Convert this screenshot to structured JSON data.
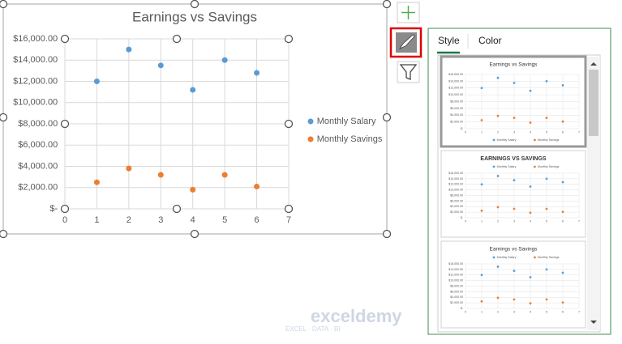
{
  "chart_data": {
    "type": "scatter",
    "title": "Earnings vs Savings",
    "x": [
      1,
      2,
      3,
      4,
      5,
      6
    ],
    "series": [
      {
        "name": "Monthly Salary",
        "color": "#5b9bd5",
        "values": [
          12000,
          15000,
          13500,
          11200,
          14000,
          12800
        ]
      },
      {
        "name": "Monthly Savings",
        "color": "#ed7d31",
        "values": [
          2500,
          3800,
          3200,
          1800,
          3200,
          2100
        ]
      }
    ],
    "xlim": [
      0,
      7
    ],
    "xticks": [
      0,
      1,
      2,
      3,
      4,
      5,
      6,
      7
    ],
    "ylim": [
      0,
      16000
    ],
    "yticks": [
      {
        "value": 0,
        "label": "$-"
      },
      {
        "value": 2000,
        "label": "$2,000.00"
      },
      {
        "value": 4000,
        "label": "$4,000.00"
      },
      {
        "value": 6000,
        "label": "$6,000.00"
      },
      {
        "value": 8000,
        "label": "$8,000.00"
      },
      {
        "value": 10000,
        "label": "$10,000.00"
      },
      {
        "value": 12000,
        "label": "$12,000.00"
      },
      {
        "value": 14000,
        "label": "$14,000.00"
      },
      {
        "value": 16000,
        "label": "$16,000.00"
      }
    ],
    "grid": true,
    "legend": "right"
  },
  "style_pane": {
    "tabs": [
      "Style",
      "Color"
    ],
    "thumbnails": [
      "Earnings vs Savings",
      "EARNINGS VS SAVINGS",
      "Earnings vs Savings"
    ]
  },
  "watermark": {
    "name": "exceldemy",
    "tagline": "EXCEL · DATA · BI"
  }
}
